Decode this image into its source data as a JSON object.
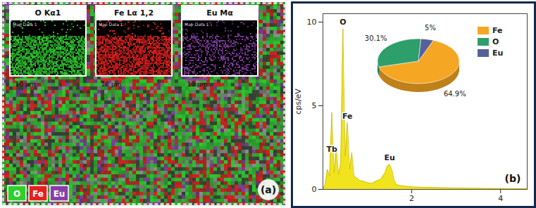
{
  "chart_data": [
    {
      "type": "map",
      "title": "(a)",
      "maps": [
        {
          "name": "O Kα1",
          "label": "Map Data 1",
          "scale": "10 μm"
        },
        {
          "name": "Fe Lα 1,2",
          "label": "Map Data 1",
          "scale": "10 μm"
        },
        {
          "name": "Eu Mα",
          "label": "Map Data 1",
          "scale": "10 μm"
        }
      ],
      "series": [
        {
          "name": "O",
          "color": "#2ed02e"
        },
        {
          "name": "Fe",
          "color": "#e3211f"
        },
        {
          "name": "Eu",
          "color": "#8a3fa8"
        }
      ],
      "legend": "bottom-left"
    },
    {
      "type": "area",
      "title": "(b)",
      "y_label": "cps/eV",
      "color": "#f2e41c",
      "x": [
        0,
        0.05,
        0.1,
        0.15,
        0.2,
        0.25,
        0.3,
        0.35,
        0.4,
        0.45,
        0.5,
        0.55,
        0.6,
        0.65,
        0.7,
        0.75,
        0.8,
        0.85,
        0.9,
        0.95,
        1.0,
        1.1,
        1.2,
        1.3,
        1.4,
        1.45,
        1.5,
        1.55,
        1.6,
        1.65,
        1.7,
        1.8,
        2.0,
        2.3,
        2.6,
        3.0,
        3.5,
        4.0,
        4.6
      ],
      "values": [
        0,
        0.3,
        1.2,
        0.8,
        4.6,
        1.0,
        2.5,
        0.9,
        1.5,
        9.6,
        2.0,
        4.0,
        1.2,
        2.2,
        0.8,
        0.7,
        0.6,
        0.5,
        0.5,
        0.45,
        0.4,
        0.35,
        0.5,
        0.6,
        1.0,
        1.4,
        1.5,
        1.2,
        0.6,
        0.3,
        0.25,
        0.2,
        0.15,
        0.12,
        0.1,
        0.08,
        0.06,
        0.05,
        0.04
      ],
      "xlim": [
        0,
        4.6
      ],
      "xticks": [
        2,
        4
      ],
      "ylim": [
        0,
        10.5
      ],
      "yticks": [
        0,
        5,
        10
      ],
      "grid": false,
      "annotations": [
        {
          "text": "O",
          "x": 0.45,
          "y": 9.6
        },
        {
          "text": "Fe",
          "x": 0.55,
          "y": 4.0
        },
        {
          "text": "Tb",
          "x": 0.2,
          "y": 2.0
        },
        {
          "text": "Eu",
          "x": 1.5,
          "y": 1.5
        }
      ]
    },
    {
      "type": "pie",
      "categories": [
        "Fe",
        "O",
        "Eu"
      ],
      "values": [
        64.9,
        30.1,
        5
      ],
      "value_labels": [
        "64.9%",
        "30.1%",
        "5%"
      ],
      "colors": [
        "#f5a623",
        "#2e9e6b",
        "#56629a"
      ],
      "data_labels": true,
      "legend": "right"
    }
  ]
}
